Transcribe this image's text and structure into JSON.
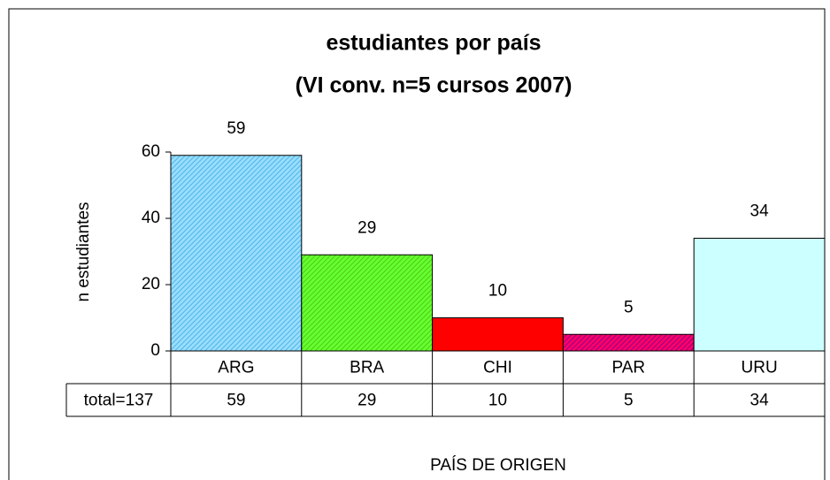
{
  "chart_data": {
    "type": "bar",
    "title": [
      "estudiantes por país",
      "(VI conv. n=5 cursos 2007)"
    ],
    "y_label": "n estudiantes",
    "x_label": "PAÍS DE ORIGEN",
    "categories": [
      "ARG",
      "BRA",
      "CHI",
      "PAR",
      "URU"
    ],
    "values": [
      59,
      29,
      10,
      5,
      34
    ],
    "colors": [
      "#99ddff",
      "#66ff33",
      "#ff0000",
      "#ff0066",
      "#ccffff"
    ],
    "hatch_colors": [
      "#33aadd",
      "#44bb00",
      null,
      "#660099",
      null
    ],
    "table_label": "total=137",
    "ylim": [
      0,
      60
    ],
    "yticks": [
      0,
      20,
      40,
      60
    ]
  }
}
